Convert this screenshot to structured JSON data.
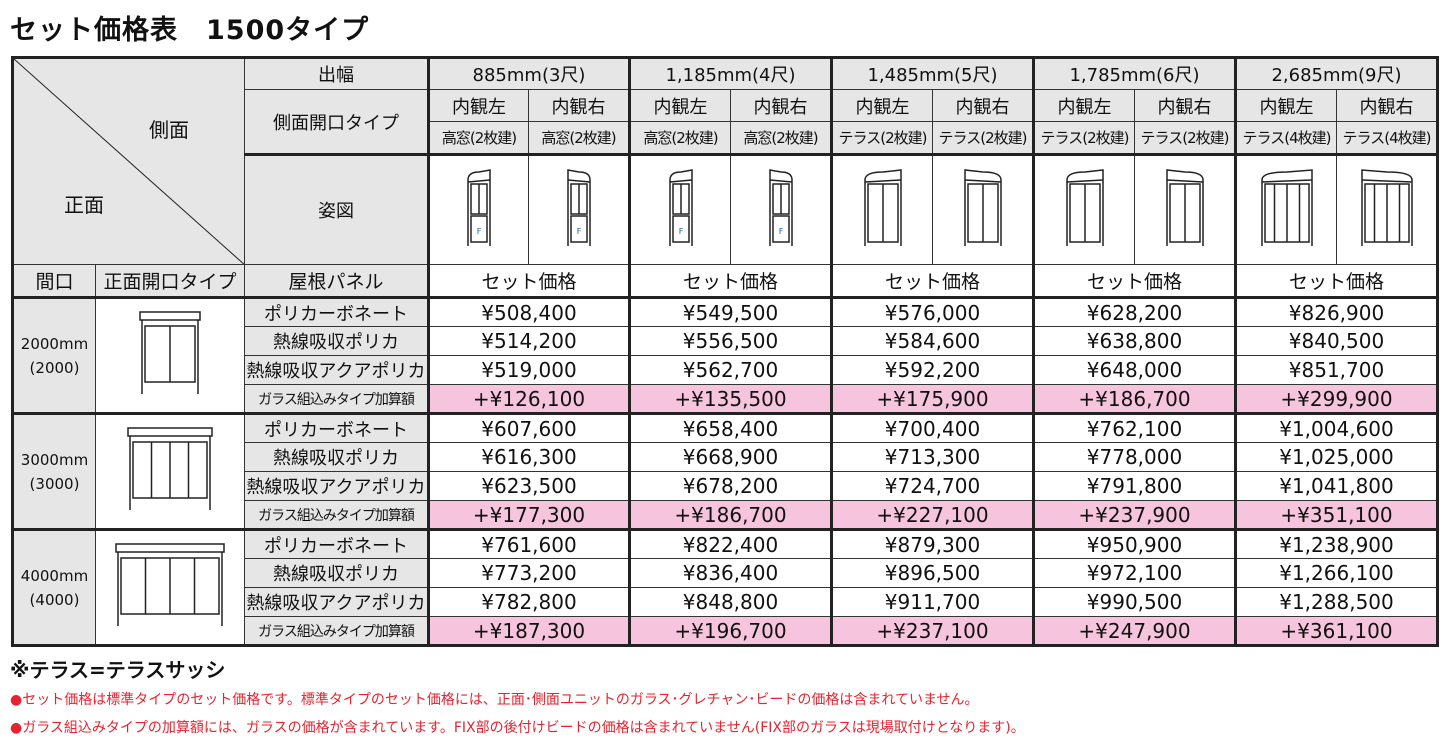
{
  "title": "セット価格表　1500タイプ",
  "header": {
    "side": "側面",
    "front": "正面",
    "width_label": "出幅",
    "side_type_label": "側面開口タイプ",
    "figure_label": "姿図",
    "col_maguchi": "間口",
    "col_front_type": "正面開口タイプ",
    "col_roof": "屋根パネル",
    "widths": [
      {
        "label": "885mm(3尺)",
        "left": "内観左",
        "right": "内観右",
        "left_type": "高窓(2枚建)",
        "right_type": "高窓(2枚建)",
        "price_label": "セット価格"
      },
      {
        "label": "1,185mm(4尺)",
        "left": "内観左",
        "right": "内観右",
        "left_type": "高窓(2枚建)",
        "right_type": "高窓(2枚建)",
        "price_label": "セット価格"
      },
      {
        "label": "1,485mm(5尺)",
        "left": "内観左",
        "right": "内観右",
        "left_type": "テラス(2枚建)",
        "right_type": "テラス(2枚建)",
        "price_label": "セット価格"
      },
      {
        "label": "1,785mm(6尺)",
        "left": "内観左",
        "right": "内観右",
        "left_type": "テラス(2枚建)",
        "right_type": "テラス(2枚建)",
        "price_label": "セット価格"
      },
      {
        "label": "2,685mm(9尺)",
        "left": "内観左",
        "right": "内観右",
        "left_type": "テラス(4枚建)",
        "right_type": "テラス(4枚建)",
        "price_label": "セット価格"
      }
    ],
    "fix_mark": "F"
  },
  "groups": [
    {
      "size": "2000mm",
      "size_sub": "(2000)",
      "rows": [
        {
          "panel": "ポリカーボネート",
          "prices": [
            "¥508,400",
            "¥549,500",
            "¥576,000",
            "¥628,200",
            "¥826,900"
          ]
        },
        {
          "panel": "熱線吸収ポリカ",
          "prices": [
            "¥514,200",
            "¥556,500",
            "¥584,600",
            "¥638,800",
            "¥840,500"
          ]
        },
        {
          "panel": "熱線吸収アクアポリカ",
          "prices": [
            "¥519,000",
            "¥562,700",
            "¥592,200",
            "¥648,000",
            "¥851,700"
          ]
        },
        {
          "panel": "ガラス組込みタイプ加算額",
          "prices": [
            "+¥126,100",
            "+¥135,500",
            "+¥175,900",
            "+¥186,700",
            "+¥299,900"
          ]
        }
      ]
    },
    {
      "size": "3000mm",
      "size_sub": "(3000)",
      "rows": [
        {
          "panel": "ポリカーボネート",
          "prices": [
            "¥607,600",
            "¥658,400",
            "¥700,400",
            "¥762,100",
            "¥1,004,600"
          ]
        },
        {
          "panel": "熱線吸収ポリカ",
          "prices": [
            "¥616,300",
            "¥668,900",
            "¥713,300",
            "¥778,000",
            "¥1,025,000"
          ]
        },
        {
          "panel": "熱線吸収アクアポリカ",
          "prices": [
            "¥623,500",
            "¥678,200",
            "¥724,700",
            "¥791,800",
            "¥1,041,800"
          ]
        },
        {
          "panel": "ガラス組込みタイプ加算額",
          "prices": [
            "+¥177,300",
            "+¥186,700",
            "+¥227,100",
            "+¥237,900",
            "+¥351,100"
          ]
        }
      ]
    },
    {
      "size": "4000mm",
      "size_sub": "(4000)",
      "rows": [
        {
          "panel": "ポリカーボネート",
          "prices": [
            "¥761,600",
            "¥822,400",
            "¥879,300",
            "¥950,900",
            "¥1,238,900"
          ]
        },
        {
          "panel": "熱線吸収ポリカ",
          "prices": [
            "¥773,200",
            "¥836,400",
            "¥896,500",
            "¥972,100",
            "¥1,266,100"
          ]
        },
        {
          "panel": "熱線吸収アクアポリカ",
          "prices": [
            "¥782,800",
            "¥848,800",
            "¥911,700",
            "¥990,500",
            "¥1,288,500"
          ]
        },
        {
          "panel": "ガラス組込みタイプ加算額",
          "prices": [
            "+¥187,300",
            "+¥196,700",
            "+¥237,100",
            "+¥247,900",
            "+¥361,100"
          ]
        }
      ]
    }
  ],
  "notes": {
    "terrace": "※テラス=テラスサッシ",
    "note1": "●セット価格は標準タイプのセット価格です。標準タイプのセット価格には、正面･側面ユニットのガラス･グレチャン･ビードの価格は含まれていません。",
    "note2": "●ガラス組込みタイプの加算額には、ガラスの価格が含まれています。FIX部の後付けビードの価格は含まれていません(FIX部のガラスは現場取付けとなります)。"
  },
  "colors": {
    "header_bg": "#e6e6e6",
    "glass_row_bg": "#f6c4dc",
    "note_red": "#e8222e"
  }
}
